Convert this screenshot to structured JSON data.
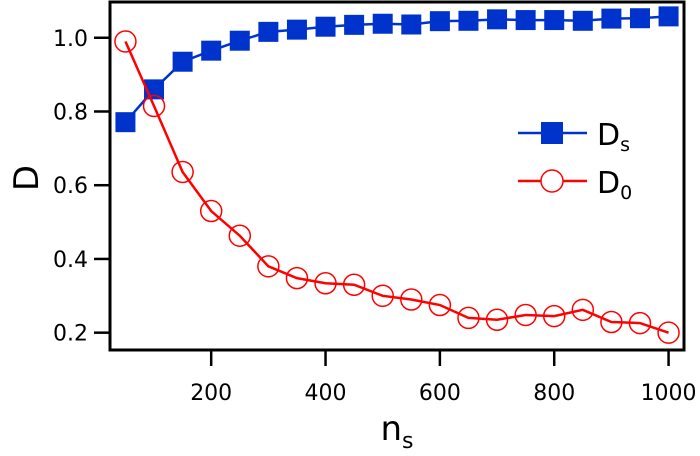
{
  "chart_data": {
    "type": "line",
    "title": "",
    "xlabel": "n",
    "xlabel_sub": "s",
    "ylabel": "D",
    "xlim": [
      23,
      1027
    ],
    "ylim": [
      0.153,
      1.097
    ],
    "xticks": [
      200,
      400,
      600,
      800,
      1000
    ],
    "xtick_labels": [
      "200",
      "400",
      "600",
      "800",
      "1000"
    ],
    "yticks": [
      0.2,
      0.4,
      0.6,
      0.8,
      1.0
    ],
    "ytick_labels": [
      "0.2",
      "0.4",
      "0.6",
      "0.8",
      "1.0"
    ],
    "grid": false,
    "legend_position": "center-right",
    "x": [
      50,
      100,
      150,
      200,
      250,
      300,
      350,
      400,
      450,
      500,
      550,
      600,
      650,
      700,
      750,
      800,
      850,
      900,
      950,
      1000
    ],
    "series": [
      {
        "name": "D",
        "name_sub": "s",
        "color": "#0033cc",
        "marker": "filled-square",
        "values": [
          0.771,
          0.86,
          0.935,
          0.965,
          0.992,
          1.016,
          1.022,
          1.03,
          1.035,
          1.038,
          1.036,
          1.045,
          1.046,
          1.05,
          1.048,
          1.048,
          1.046,
          1.052,
          1.053,
          1.058
        ]
      },
      {
        "name": "D",
        "name_sub": "0",
        "color": "#ff0000",
        "marker": "open-circle",
        "values": [
          0.99,
          0.815,
          0.636,
          0.53,
          0.463,
          0.38,
          0.348,
          0.334,
          0.33,
          0.3,
          0.29,
          0.275,
          0.24,
          0.235,
          0.248,
          0.245,
          0.262,
          0.229,
          0.226,
          0.2
        ]
      }
    ]
  }
}
